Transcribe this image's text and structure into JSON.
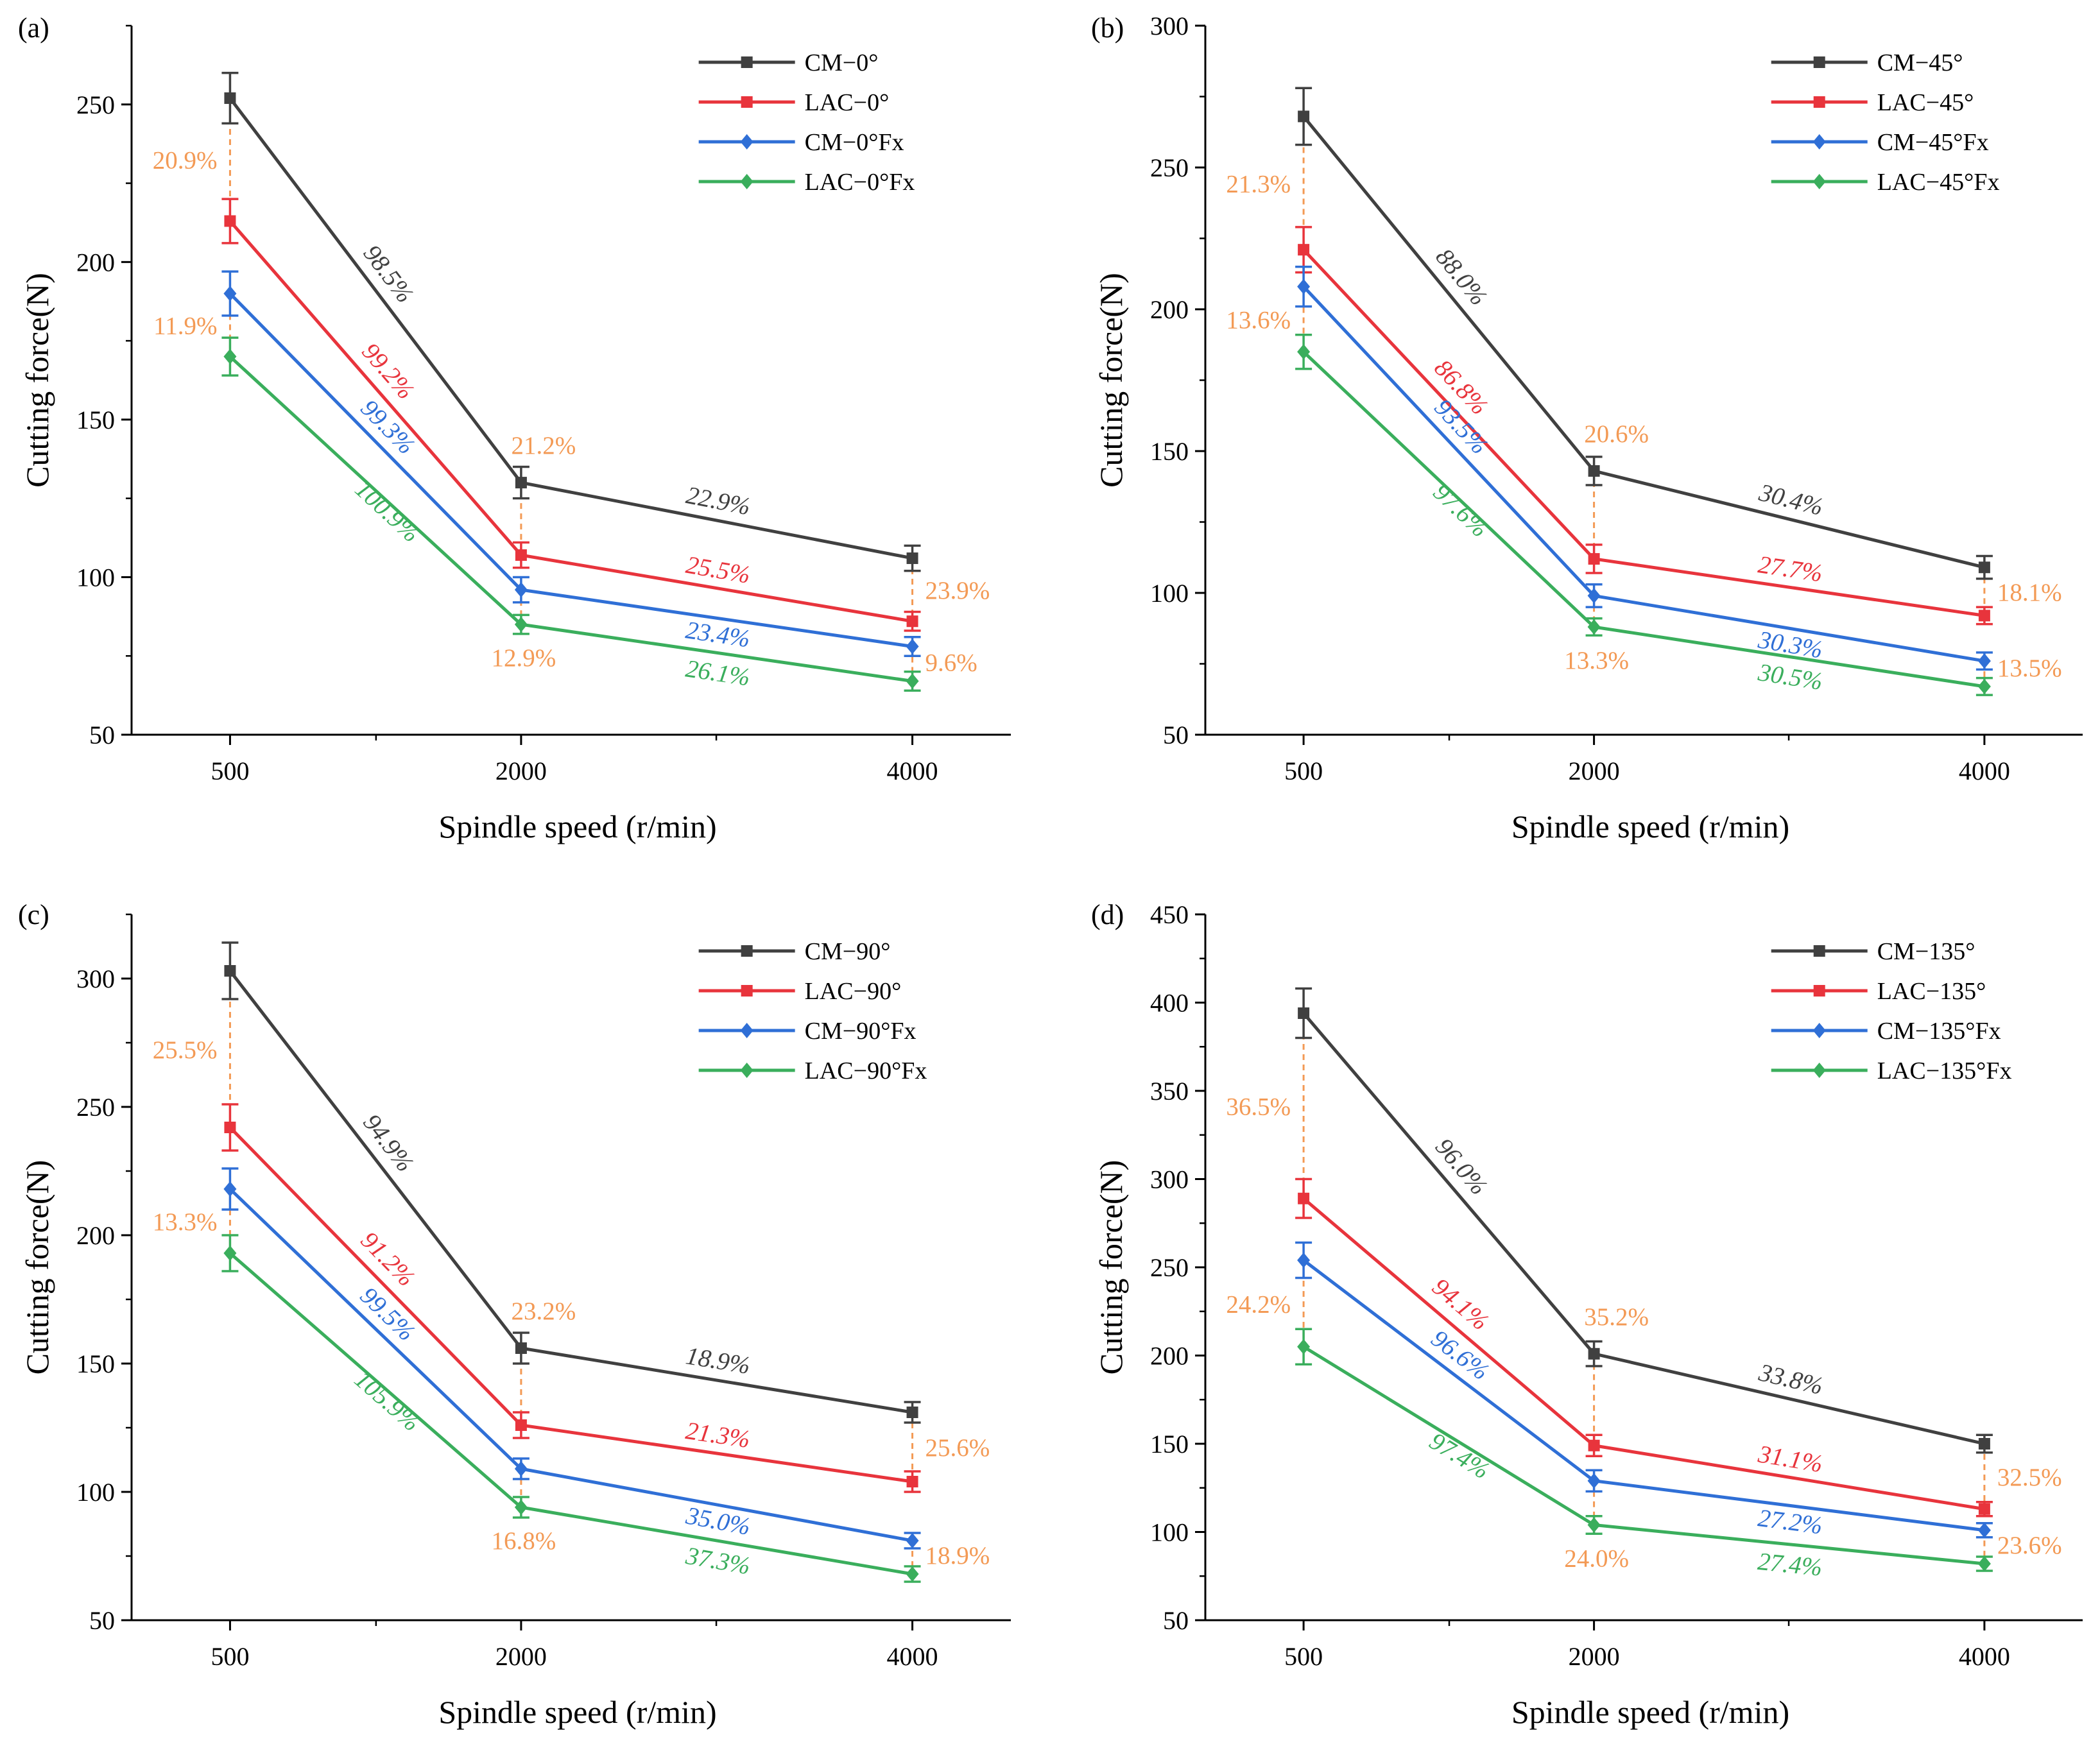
{
  "colors": {
    "CM": "#404040",
    "LAC": "#e8343c",
    "CMFx": "#2f6fd6",
    "LACFx": "#3aae5c",
    "reduction": "#f39a55"
  },
  "chart_data": [
    {
      "type": "line",
      "panel": "(a)",
      "xlabel": "Spindle speed (r/min)",
      "ylabel": "Cutting force(N)",
      "categories": [
        "500",
        "2000",
        "4000"
      ],
      "ylim": [
        50,
        275
      ],
      "yticks": [
        "50",
        "100",
        "150",
        "200",
        "250"
      ],
      "series": [
        {
          "name": "CM−0°",
          "key": "CM",
          "marker": "square",
          "values": [
            252,
            130,
            106
          ],
          "err": [
            8,
            5,
            4
          ]
        },
        {
          "name": "LAC−0°",
          "key": "LAC",
          "marker": "square",
          "values": [
            213,
            107,
            86
          ],
          "err": [
            7,
            4,
            3
          ]
        },
        {
          "name": "CM−0°Fx",
          "key": "CMFx",
          "marker": "diamond",
          "values": [
            190,
            96,
            78
          ],
          "err": [
            7,
            4,
            3
          ]
        },
        {
          "name": "LAC−0°Fx",
          "key": "LACFx",
          "marker": "diamond",
          "values": [
            170,
            85,
            67
          ],
          "err": [
            6,
            3,
            3
          ]
        }
      ],
      "slope_labels": [
        {
          "series": "CM",
          "text": "98.5%",
          "seg": 0
        },
        {
          "series": "LAC",
          "text": "99.2%",
          "seg": 0
        },
        {
          "series": "CMFx",
          "text": "99.3%",
          "seg": 0
        },
        {
          "series": "LACFx",
          "text": "100.9%",
          "seg": 0
        },
        {
          "series": "CM",
          "text": "22.9%",
          "seg": 1
        },
        {
          "series": "LAC",
          "text": "25.5%",
          "seg": 1
        },
        {
          "series": "CMFx",
          "text": "23.4%",
          "seg": 1
        },
        {
          "series": "LACFx",
          "text": "26.1%",
          "seg": 1
        }
      ],
      "reduction_labels": [
        {
          "x": 0,
          "text": "20.9%",
          "from": "CM",
          "to": "LAC"
        },
        {
          "x": 0,
          "text": "11.9%",
          "from": "CMFx",
          "to": "LACFx"
        },
        {
          "x": 1,
          "text": "21.2%",
          "from": "CM",
          "to": "LAC"
        },
        {
          "x": 1,
          "text": "12.9%",
          "from": "CMFx",
          "to": "LACFx"
        },
        {
          "x": 2,
          "text": "23.9%",
          "from": "CM",
          "to": "LAC"
        },
        {
          "x": 2,
          "text": "9.6%",
          "from": "CMFx",
          "to": "LACFx"
        }
      ]
    },
    {
      "type": "line",
      "panel": "(b)",
      "xlabel": "Spindle speed (r/min)",
      "ylabel": "Cutting force(N)",
      "categories": [
        "500",
        "2000",
        "4000"
      ],
      "ylim": [
        50,
        300
      ],
      "yticks": [
        "50",
        "100",
        "150",
        "200",
        "250",
        "300"
      ],
      "series": [
        {
          "name": "CM−45°",
          "key": "CM",
          "marker": "square",
          "values": [
            268,
            143,
            109
          ],
          "err": [
            10,
            5,
            4
          ]
        },
        {
          "name": "LAC−45°",
          "key": "LAC",
          "marker": "square",
          "values": [
            221,
            112,
            92
          ],
          "err": [
            8,
            5,
            3
          ]
        },
        {
          "name": "CM−45°Fx",
          "key": "CMFx",
          "marker": "diamond",
          "values": [
            208,
            99,
            76
          ],
          "err": [
            7,
            4,
            3
          ]
        },
        {
          "name": "LAC−45°Fx",
          "key": "LACFx",
          "marker": "diamond",
          "values": [
            185,
            88,
            67
          ],
          "err": [
            6,
            3,
            3
          ]
        }
      ],
      "slope_labels": [
        {
          "series": "CM",
          "text": "88.0%",
          "seg": 0
        },
        {
          "series": "LAC",
          "text": "86.8%",
          "seg": 0
        },
        {
          "series": "CMFx",
          "text": "93.5%",
          "seg": 0
        },
        {
          "series": "LACFx",
          "text": "97.6%",
          "seg": 0
        },
        {
          "series": "CM",
          "text": "30.4%",
          "seg": 1
        },
        {
          "series": "LAC",
          "text": "27.7%",
          "seg": 1
        },
        {
          "series": "CMFx",
          "text": "30.3%",
          "seg": 1
        },
        {
          "series": "LACFx",
          "text": "30.5%",
          "seg": 1
        }
      ],
      "reduction_labels": [
        {
          "x": 0,
          "text": "21.3%",
          "from": "CM",
          "to": "LAC"
        },
        {
          "x": 0,
          "text": "13.6%",
          "from": "CMFx",
          "to": "LACFx"
        },
        {
          "x": 1,
          "text": "20.6%",
          "from": "CM",
          "to": "LAC"
        },
        {
          "x": 1,
          "text": "13.3%",
          "from": "CMFx",
          "to": "LACFx"
        },
        {
          "x": 2,
          "text": "18.1%",
          "from": "CM",
          "to": "LAC"
        },
        {
          "x": 2,
          "text": "13.5%",
          "from": "CMFx",
          "to": "LACFx"
        }
      ]
    },
    {
      "type": "line",
      "panel": "(c)",
      "xlabel": "Spindle speed (r/min)",
      "ylabel": "Cutting force(N)",
      "categories": [
        "500",
        "2000",
        "4000"
      ],
      "ylim": [
        50,
        325
      ],
      "yticks": [
        "50",
        "100",
        "150",
        "200",
        "250",
        "300"
      ],
      "series": [
        {
          "name": "CM−90°",
          "key": "CM",
          "marker": "square",
          "values": [
            303,
            156,
            131
          ],
          "err": [
            11,
            6,
            4
          ]
        },
        {
          "name": "LAC−90°",
          "key": "LAC",
          "marker": "square",
          "values": [
            242,
            126,
            104
          ],
          "err": [
            9,
            5,
            4
          ]
        },
        {
          "name": "CM−90°Fx",
          "key": "CMFx",
          "marker": "diamond",
          "values": [
            218,
            109,
            81
          ],
          "err": [
            8,
            4,
            3
          ]
        },
        {
          "name": "LAC−90°Fx",
          "key": "LACFx",
          "marker": "diamond",
          "values": [
            193,
            94,
            68
          ],
          "err": [
            7,
            4,
            3
          ]
        }
      ],
      "slope_labels": [
        {
          "series": "CM",
          "text": "94.9%",
          "seg": 0
        },
        {
          "series": "LAC",
          "text": "91.2%",
          "seg": 0
        },
        {
          "series": "CMFx",
          "text": "99.5%",
          "seg": 0
        },
        {
          "series": "LACFx",
          "text": "105.9%",
          "seg": 0
        },
        {
          "series": "CM",
          "text": "18.9%",
          "seg": 1
        },
        {
          "series": "LAC",
          "text": "21.3%",
          "seg": 1
        },
        {
          "series": "CMFx",
          "text": "35.0%",
          "seg": 1
        },
        {
          "series": "LACFx",
          "text": "37.3%",
          "seg": 1
        }
      ],
      "reduction_labels": [
        {
          "x": 0,
          "text": "25.5%",
          "from": "CM",
          "to": "LAC"
        },
        {
          "x": 0,
          "text": "13.3%",
          "from": "CMFx",
          "to": "LACFx"
        },
        {
          "x": 1,
          "text": "23.2%",
          "from": "CM",
          "to": "LAC"
        },
        {
          "x": 1,
          "text": "16.8%",
          "from": "CMFx",
          "to": "LACFx"
        },
        {
          "x": 2,
          "text": "25.6%",
          "from": "CM",
          "to": "LAC"
        },
        {
          "x": 2,
          "text": "18.9%",
          "from": "CMFx",
          "to": "LACFx"
        }
      ]
    },
    {
      "type": "line",
      "panel": "(d)",
      "xlabel": "Spindle speed (r/min)",
      "ylabel": "Cutting force(N)",
      "categories": [
        "500",
        "2000",
        "4000"
      ],
      "ylim": [
        50,
        450
      ],
      "yticks": [
        "50",
        "100",
        "150",
        "200",
        "250",
        "300",
        "350",
        "400",
        "450"
      ],
      "series": [
        {
          "name": "CM−135°",
          "key": "CM",
          "marker": "square",
          "values": [
            394,
            201,
            150
          ],
          "err": [
            14,
            7,
            5
          ]
        },
        {
          "name": "LAC−135°",
          "key": "LAC",
          "marker": "square",
          "values": [
            289,
            149,
            113
          ],
          "err": [
            11,
            6,
            4
          ]
        },
        {
          "name": "CM−135°Fx",
          "key": "CMFx",
          "marker": "diamond",
          "values": [
            254,
            129,
            101
          ],
          "err": [
            10,
            6,
            4
          ]
        },
        {
          "name": "LAC−135°Fx",
          "key": "LACFx",
          "marker": "diamond",
          "values": [
            205,
            104,
            82
          ],
          "err": [
            10,
            5,
            4
          ]
        }
      ],
      "slope_labels": [
        {
          "series": "CM",
          "text": "96.0%",
          "seg": 0
        },
        {
          "series": "LAC",
          "text": "94.1%",
          "seg": 0
        },
        {
          "series": "CMFx",
          "text": "96.6%",
          "seg": 0
        },
        {
          "series": "LACFx",
          "text": "97.4%",
          "seg": 0
        },
        {
          "series": "CM",
          "text": "33.8%",
          "seg": 1
        },
        {
          "series": "LAC",
          "text": "31.1%",
          "seg": 1
        },
        {
          "series": "CMFx",
          "text": "27.2%",
          "seg": 1
        },
        {
          "series": "LACFx",
          "text": "27.4%",
          "seg": 1
        }
      ],
      "reduction_labels": [
        {
          "x": 0,
          "text": "36.5%",
          "from": "CM",
          "to": "LAC"
        },
        {
          "x": 0,
          "text": "24.2%",
          "from": "CMFx",
          "to": "LACFx"
        },
        {
          "x": 1,
          "text": "35.2%",
          "from": "CM",
          "to": "LAC"
        },
        {
          "x": 1,
          "text": "24.0%",
          "from": "CMFx",
          "to": "LACFx"
        },
        {
          "x": 2,
          "text": "32.5%",
          "from": "CM",
          "to": "LAC"
        },
        {
          "x": 2,
          "text": "23.6%",
          "from": "CMFx",
          "to": "LACFx"
        }
      ]
    }
  ]
}
